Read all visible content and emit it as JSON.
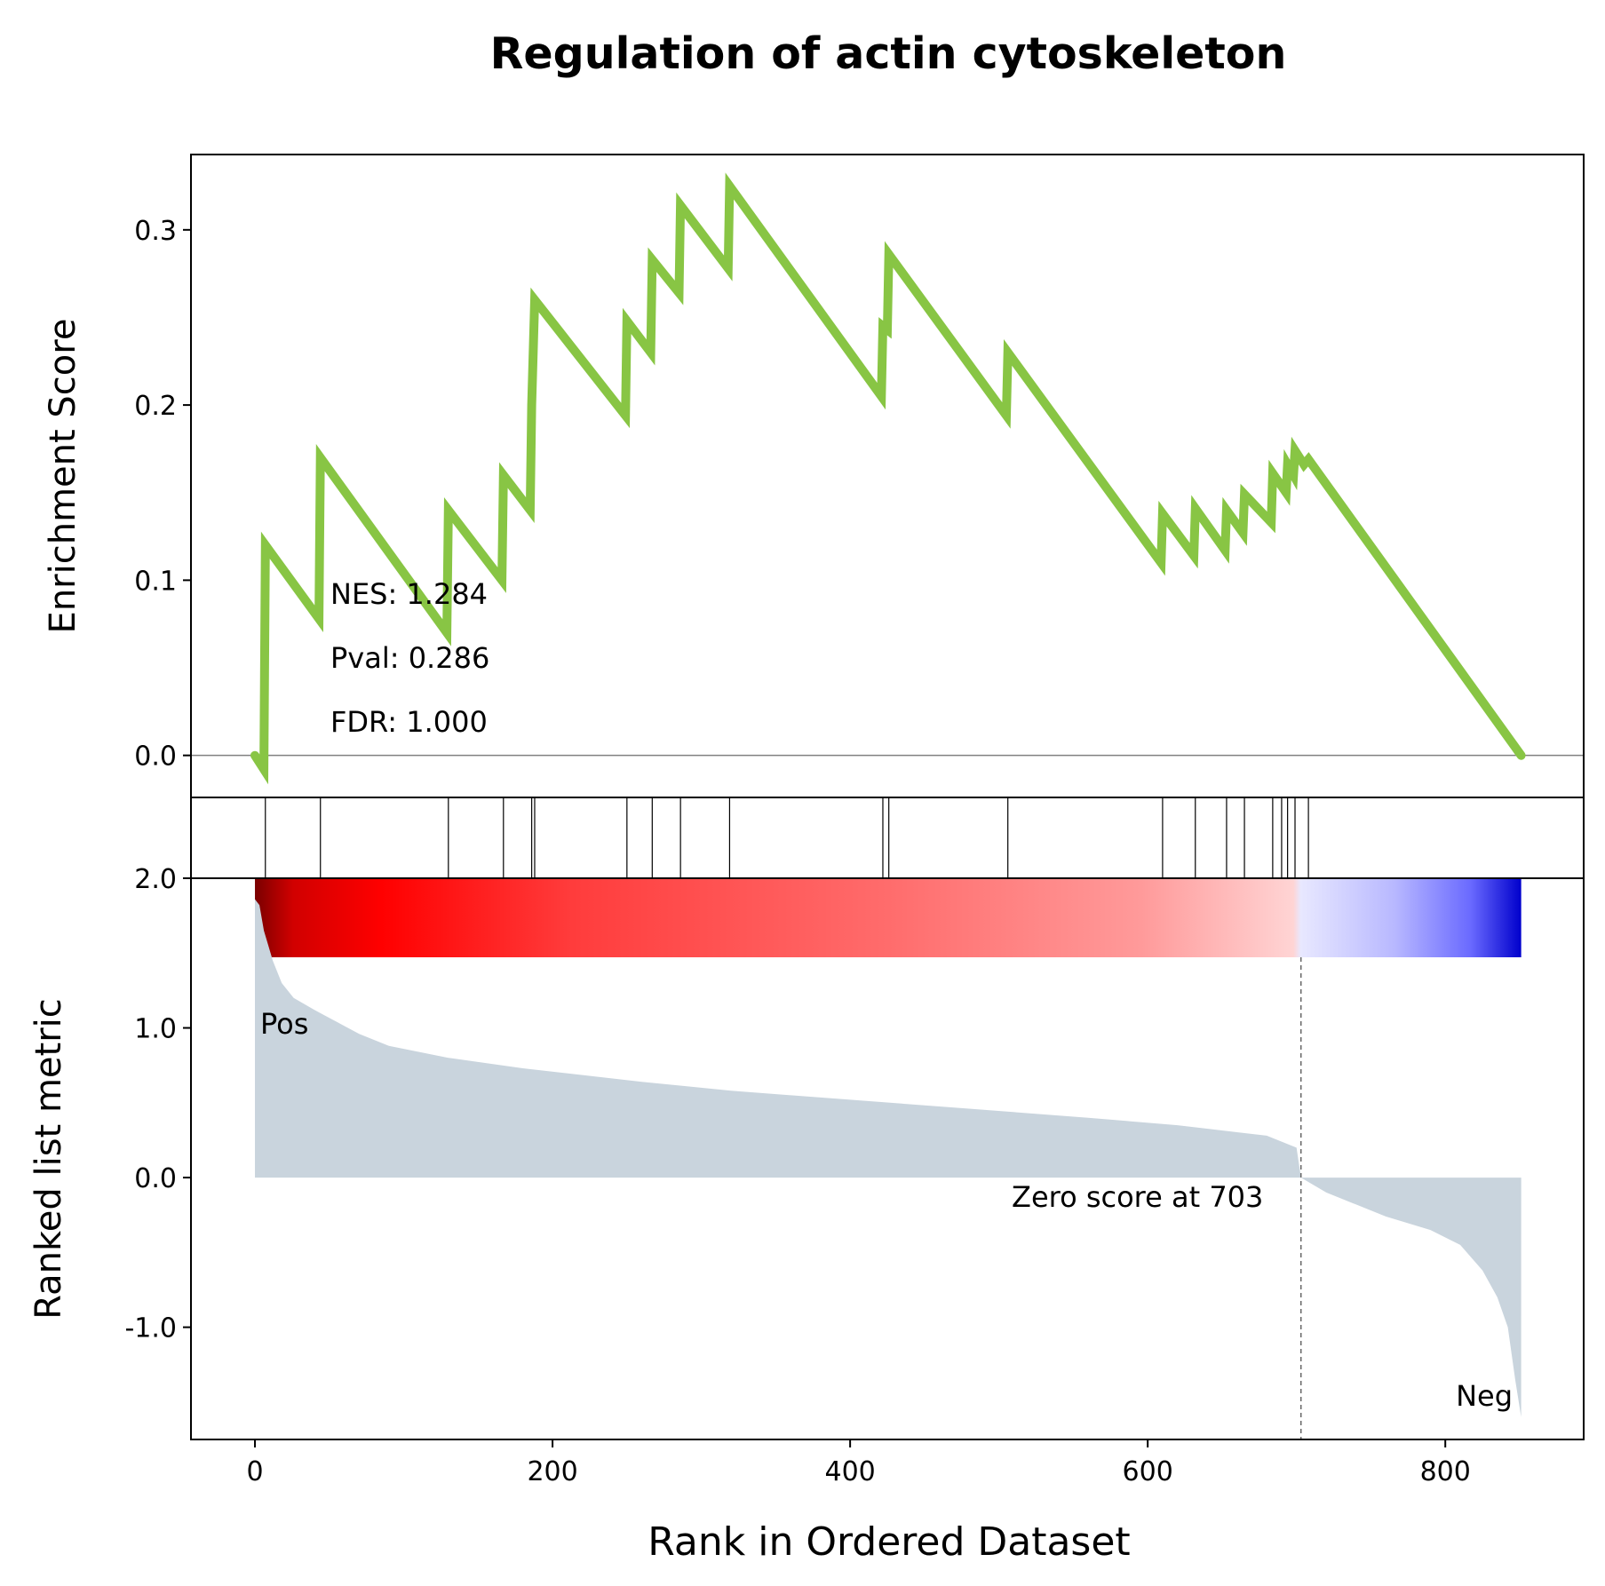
{
  "chart_data": {
    "type": "line",
    "title": "Regulation of actin cytoskeleton",
    "n_genes": 851,
    "xlabel": "Rank in Ordered Dataset",
    "xlim": [
      -43,
      893
    ],
    "x_ticks": [
      0,
      200,
      400,
      600,
      800
    ],
    "es_panel": {
      "ylabel": "Enrichment Score",
      "ylim": [
        -0.024,
        0.343
      ],
      "y_ticks": [
        0.0,
        0.1,
        0.2,
        0.3
      ],
      "y_tick_labels": [
        "0.0",
        "0.1",
        "0.2",
        "0.3"
      ],
      "line_color": "#88c544",
      "es_points": [
        [
          0,
          0.0
        ],
        [
          6,
          -0.008
        ],
        [
          7,
          0.12
        ],
        [
          43,
          0.078
        ],
        [
          44,
          0.17
        ],
        [
          129,
          0.07
        ],
        [
          130,
          0.14
        ],
        [
          166,
          0.1
        ],
        [
          167,
          0.16
        ],
        [
          185,
          0.14
        ],
        [
          186,
          0.2
        ],
        [
          188,
          0.26
        ],
        [
          249,
          0.194
        ],
        [
          250,
          0.248
        ],
        [
          266,
          0.23
        ],
        [
          267,
          0.283
        ],
        [
          285,
          0.264
        ],
        [
          286,
          0.314
        ],
        [
          318,
          0.278
        ],
        [
          319,
          0.325
        ],
        [
          421,
          0.205
        ],
        [
          422,
          0.245
        ],
        [
          425,
          0.243
        ],
        [
          426,
          0.286
        ],
        [
          505,
          0.194
        ],
        [
          506,
          0.23
        ],
        [
          609,
          0.11
        ],
        [
          610,
          0.138
        ],
        [
          631,
          0.114
        ],
        [
          632,
          0.141
        ],
        [
          652,
          0.117
        ],
        [
          653,
          0.14
        ],
        [
          664,
          0.127
        ],
        [
          665,
          0.149
        ],
        [
          683,
          0.133
        ],
        [
          684,
          0.161
        ],
        [
          693,
          0.15
        ],
        [
          694,
          0.166
        ],
        [
          698,
          0.16
        ],
        [
          699,
          0.174
        ],
        [
          705,
          0.166
        ],
        [
          708,
          0.169
        ],
        [
          851,
          0.0
        ]
      ],
      "stats": [
        "NES: 1.284",
        "Pval: 0.286",
        "FDR: 1.000"
      ]
    },
    "hits_panel": {
      "hit_ranks": [
        7,
        44,
        130,
        167,
        186,
        188,
        250,
        267,
        286,
        319,
        422,
        426,
        506,
        610,
        632,
        653,
        665,
        684,
        690,
        694,
        699,
        708
      ]
    },
    "metric_panel": {
      "ylabel": "Ranked list metric",
      "ylim": [
        -1.75,
        2.0
      ],
      "y_ticks": [
        -1.0,
        0.0,
        1.0,
        2.0
      ],
      "y_tick_labels": [
        "-1.0",
        "0.0",
        "1.0",
        "2.0"
      ],
      "fill_color": "#c9d4dd",
      "metric_profile": [
        [
          0,
          1.86
        ],
        [
          3,
          1.82
        ],
        [
          6,
          1.65
        ],
        [
          9,
          1.55
        ],
        [
          12,
          1.45
        ],
        [
          18,
          1.3
        ],
        [
          26,
          1.2
        ],
        [
          40,
          1.12
        ],
        [
          55,
          1.04
        ],
        [
          70,
          0.96
        ],
        [
          90,
          0.88
        ],
        [
          130,
          0.8
        ],
        [
          180,
          0.73
        ],
        [
          260,
          0.64
        ],
        [
          320,
          0.58
        ],
        [
          400,
          0.52
        ],
        [
          480,
          0.46
        ],
        [
          560,
          0.4
        ],
        [
          620,
          0.35
        ],
        [
          680,
          0.28
        ],
        [
          700,
          0.2
        ],
        [
          703,
          0.0
        ],
        [
          720,
          -0.1
        ],
        [
          760,
          -0.26
        ],
        [
          790,
          -0.35
        ],
        [
          810,
          -0.45
        ],
        [
          825,
          -0.62
        ],
        [
          835,
          -0.8
        ],
        [
          842,
          -1.0
        ],
        [
          847,
          -1.35
        ],
        [
          851,
          -1.6
        ]
      ],
      "zero_cross_rank": 703,
      "zero_label": "Zero score at 703",
      "pos_label": "Pos",
      "neg_label": "Neg",
      "pos_color": "#ff0000",
      "neg_color": "#0000ff"
    }
  }
}
